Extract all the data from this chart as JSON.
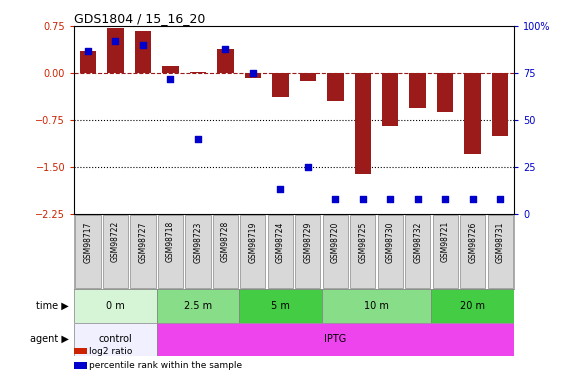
{
  "title": "GDS1804 / 15_16_20",
  "samples": [
    "GSM98717",
    "GSM98722",
    "GSM98727",
    "GSM98718",
    "GSM98723",
    "GSM98728",
    "GSM98719",
    "GSM98724",
    "GSM98729",
    "GSM98720",
    "GSM98725",
    "GSM98730",
    "GSM98732",
    "GSM98721",
    "GSM98726",
    "GSM98731"
  ],
  "log2_ratio": [
    0.35,
    0.72,
    0.68,
    0.12,
    0.02,
    0.38,
    -0.08,
    -0.38,
    -0.12,
    -0.45,
    -1.62,
    -0.85,
    -0.55,
    -0.62,
    -1.3,
    -1.0
  ],
  "pct_rank": [
    87,
    92,
    90,
    72,
    40,
    88,
    75,
    13,
    25,
    8,
    8,
    8,
    8,
    8,
    8,
    8
  ],
  "ylim": [
    -2.25,
    0.75
  ],
  "right_ylim": [
    0,
    100
  ],
  "right_yticks": [
    0,
    25,
    50,
    75,
    100
  ],
  "right_yticklabels": [
    "0",
    "25",
    "50",
    "75",
    "100%"
  ],
  "left_yticks": [
    -2.25,
    -1.5,
    -0.75,
    0,
    0.75
  ],
  "hline_y": 0,
  "dotted_lines": [
    -0.75,
    -1.5
  ],
  "bar_color": "#9b1a1a",
  "dot_color": "#0000cc",
  "time_groups": [
    {
      "label": "0 m",
      "start": 0,
      "end": 3,
      "color": "#d6f5d6"
    },
    {
      "label": "2.5 m",
      "start": 3,
      "end": 6,
      "color": "#88dd88"
    },
    {
      "label": "5 m",
      "start": 6,
      "end": 9,
      "color": "#44cc44"
    },
    {
      "label": "10 m",
      "start": 9,
      "end": 13,
      "color": "#88dd88"
    },
    {
      "label": "20 m",
      "start": 13,
      "end": 16,
      "color": "#44cc44"
    }
  ],
  "agent_groups": [
    {
      "label": "control",
      "start": 0,
      "end": 3,
      "color": "#f0f0ff"
    },
    {
      "label": "IPTG",
      "start": 3,
      "end": 16,
      "color": "#ee44ee"
    }
  ],
  "legend_items": [
    {
      "label": "log2 ratio",
      "color": "#cc2200"
    },
    {
      "label": "percentile rank within the sample",
      "color": "#0000cc"
    }
  ],
  "bg_color": "#ffffff",
  "tick_color_left": "#cc2200",
  "tick_color_right": "#0000cc",
  "sample_box_color": "#d8d8d8",
  "sample_box_edge": "#888888"
}
